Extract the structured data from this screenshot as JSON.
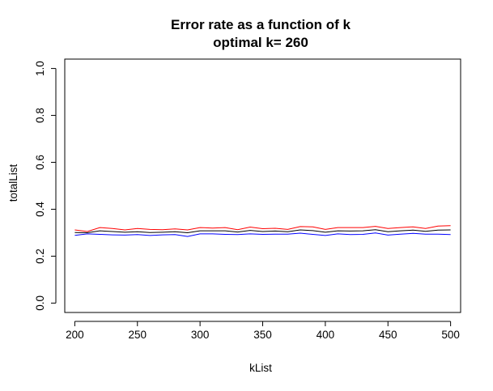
{
  "chart_data": {
    "type": "line",
    "title": [
      "Error rate as a function of k",
      "optimal k= 260"
    ],
    "xlabel": "kList",
    "ylabel": "totalList",
    "xlim": [
      192,
      508
    ],
    "ylim": [
      -0.04,
      1.04
    ],
    "xticks": [
      200,
      250,
      300,
      350,
      400,
      450,
      500
    ],
    "xtick_labels": [
      "200",
      "250",
      "300",
      "350",
      "400",
      "450",
      "500"
    ],
    "yticks": [
      0.0,
      0.2,
      0.4,
      0.6,
      0.8,
      1.0
    ],
    "ytick_labels": [
      "0.0",
      "0.2",
      "0.4",
      "0.6",
      "0.8",
      "1.0"
    ],
    "grid": false,
    "x": [
      200,
      210,
      220,
      230,
      240,
      250,
      260,
      270,
      280,
      290,
      300,
      310,
      320,
      330,
      340,
      350,
      360,
      370,
      380,
      390,
      400,
      410,
      420,
      430,
      440,
      450,
      460,
      470,
      480,
      490,
      500
    ],
    "series": [
      {
        "color": "#ff0000",
        "values": [
          0.312,
          0.305,
          0.322,
          0.318,
          0.312,
          0.318,
          0.314,
          0.313,
          0.316,
          0.312,
          0.322,
          0.32,
          0.322,
          0.313,
          0.324,
          0.317,
          0.319,
          0.314,
          0.326,
          0.325,
          0.314,
          0.322,
          0.322,
          0.322,
          0.327,
          0.318,
          0.322,
          0.325,
          0.318,
          0.328,
          0.33
        ]
      },
      {
        "color": "#000000",
        "values": [
          0.301,
          0.3,
          0.308,
          0.305,
          0.302,
          0.304,
          0.301,
          0.302,
          0.304,
          0.3,
          0.308,
          0.308,
          0.308,
          0.303,
          0.31,
          0.305,
          0.307,
          0.304,
          0.312,
          0.309,
          0.302,
          0.308,
          0.307,
          0.308,
          0.313,
          0.304,
          0.308,
          0.311,
          0.306,
          0.311,
          0.312
        ]
      },
      {
        "color": "#0000ff",
        "values": [
          0.289,
          0.295,
          0.293,
          0.291,
          0.29,
          0.292,
          0.288,
          0.291,
          0.292,
          0.284,
          0.295,
          0.295,
          0.293,
          0.292,
          0.295,
          0.293,
          0.294,
          0.294,
          0.298,
          0.293,
          0.288,
          0.295,
          0.292,
          0.293,
          0.299,
          0.29,
          0.294,
          0.297,
          0.294,
          0.294,
          0.292
        ]
      }
    ]
  }
}
